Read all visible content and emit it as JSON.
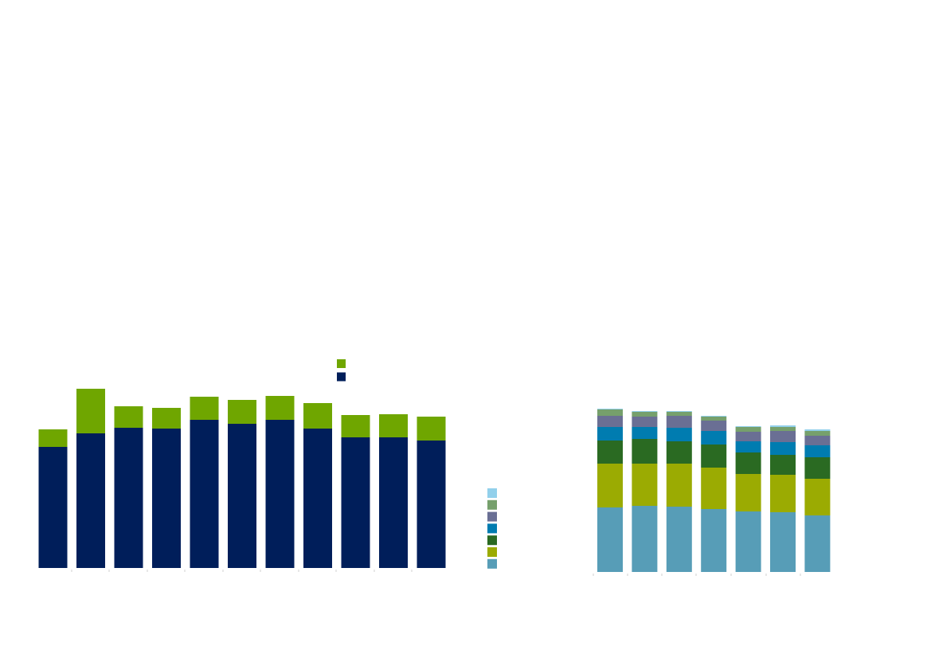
{
  "chart_data": [
    {
      "type": "bar",
      "stacked": true,
      "title": "",
      "xlabel": "",
      "ylabel": "",
      "legend_position": "top-right",
      "ylim": [
        0,
        230
      ],
      "category_count": 11,
      "series": [
        {
          "color": "#001e5a",
          "values": [
            152,
            169,
            176,
            175,
            186,
            181,
            186,
            175,
            164,
            164,
            160
          ]
        },
        {
          "color": "#6fa600",
          "values": [
            22,
            56,
            27,
            26,
            29,
            30,
            30,
            32,
            28,
            29,
            30
          ]
        }
      ]
    },
    {
      "type": "bar",
      "stacked": true,
      "title": "",
      "xlabel": "",
      "ylabel": "",
      "legend_position": "left",
      "ylim": [
        0,
        210
      ],
      "category_count": 7,
      "series": [
        {
          "color": "#579db7",
          "values": [
            81,
            83,
            82,
            79,
            76,
            75,
            71
          ]
        },
        {
          "color": "#9bab02",
          "values": [
            55,
            53,
            54,
            52,
            47,
            47,
            46
          ]
        },
        {
          "color": "#2a6a22",
          "values": [
            29,
            31,
            28,
            29,
            27,
            25,
            27
          ]
        },
        {
          "color": "#007cb0",
          "values": [
            17,
            15,
            17,
            17,
            14,
            16,
            15
          ]
        },
        {
          "color": "#6a6f94",
          "values": [
            14,
            13,
            15,
            13,
            12,
            14,
            12
          ]
        },
        {
          "color": "#76a06c",
          "values": [
            8,
            6,
            5,
            5,
            6,
            5,
            6
          ]
        },
        {
          "color": "#92d0eb",
          "values": [
            1,
            1,
            1,
            1,
            1,
            2,
            2
          ]
        }
      ]
    }
  ]
}
